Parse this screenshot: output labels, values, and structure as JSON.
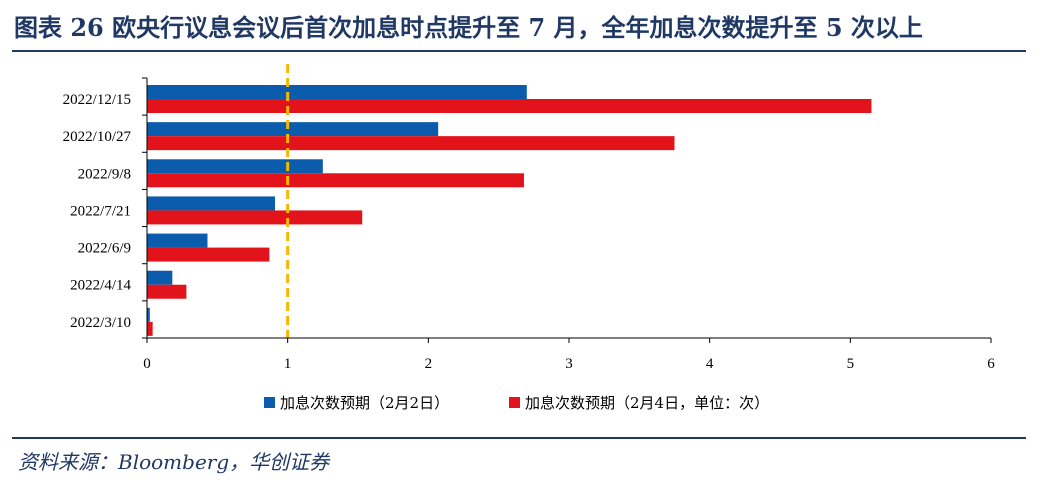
{
  "header": {
    "title": "图表 26   欧央行议息会议后首次加息时点提升至 7 月，全年加息次数提升至 5 次以上"
  },
  "footer": {
    "source": "资料来源：Bloomberg，华创证券"
  },
  "chart_data": {
    "type": "bar",
    "orientation": "horizontal",
    "categories": [
      "2022/12/15",
      "2022/10/27",
      "2022/9/8",
      "2022/7/21",
      "2022/6/9",
      "2022/4/14",
      "2022/3/10"
    ],
    "series": [
      {
        "name": "加息次数预期（2月2日）",
        "color": "#0b5cad",
        "values": [
          2.7,
          2.07,
          1.25,
          0.91,
          0.43,
          0.18,
          0.02
        ]
      },
      {
        "name": "加息次数预期（2月4日，单位：次）",
        "color": "#e3131b",
        "values": [
          5.15,
          3.75,
          2.68,
          1.53,
          0.87,
          0.28,
          0.04
        ]
      }
    ],
    "xlim": [
      0,
      6
    ],
    "xticks": [
      0,
      1,
      2,
      3,
      4,
      5,
      6
    ],
    "reference_line": {
      "x": 1,
      "color": "#f5b800",
      "style": "dashed"
    },
    "legend_position": "bottom",
    "grid": false
  }
}
